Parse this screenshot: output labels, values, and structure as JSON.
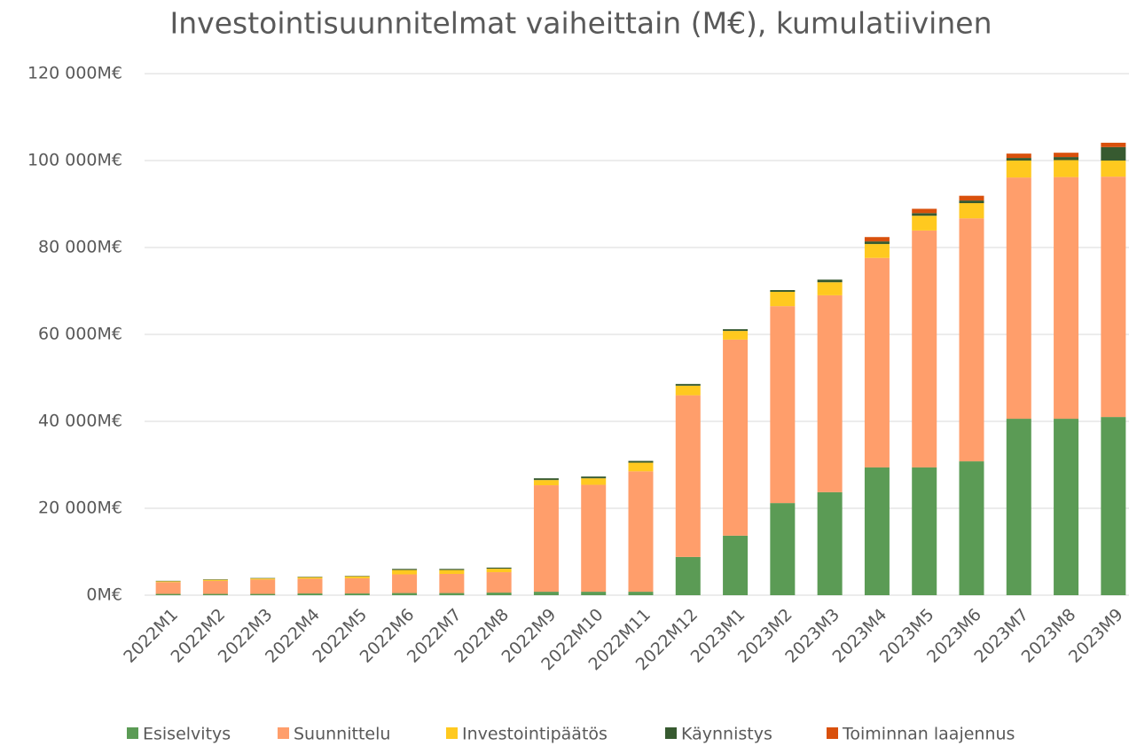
{
  "chart_data": {
    "type": "stacked_bar",
    "title": "Investointisuunnitelmat vaiheittain (M€), kumulatiivinen",
    "categories": [
      "2022M1",
      "2022M2",
      "2022M3",
      "2022M4",
      "2022M5",
      "2022M6",
      "2022M7",
      "2022M8",
      "2022M9",
      "2022M10",
      "2022M11",
      "2022M12",
      "2023M1",
      "2023M2",
      "2023M3",
      "2023M4",
      "2023M5",
      "2023M6",
      "2023M7",
      "2023M8",
      "2023M9"
    ],
    "series": [
      {
        "name": "Esiselvitys",
        "color": "#5b9b55",
        "values": [
          300,
          300,
          300,
          400,
          400,
          500,
          500,
          600,
          800,
          800,
          800,
          8800,
          13700,
          21200,
          23700,
          29400,
          29400,
          30800,
          40600,
          40600,
          41000
        ]
      },
      {
        "name": "Suunnittelu",
        "color": "#ff9e6b",
        "values": [
          2700,
          3000,
          3300,
          3400,
          3500,
          4300,
          4400,
          4700,
          24500,
          24600,
          27700,
          37200,
          45100,
          45300,
          45300,
          48200,
          54500,
          55900,
          55500,
          55600,
          55300
        ]
      },
      {
        "name": "Investointipäätös",
        "color": "#ffc91f",
        "values": [
          200,
          250,
          250,
          350,
          450,
          1000,
          900,
          800,
          1200,
          1500,
          2000,
          2200,
          2000,
          3300,
          3000,
          3200,
          3400,
          3500,
          3900,
          3900,
          3700
        ]
      },
      {
        "name": "Käynnistys",
        "color": "#375a30",
        "values": [
          100,
          100,
          100,
          100,
          100,
          250,
          250,
          250,
          400,
          400,
          400,
          400,
          400,
          400,
          600,
          600,
          600,
          600,
          600,
          700,
          3100
        ]
      },
      {
        "name": "Toiminnan laajennus",
        "color": "#d9500c",
        "values": [
          0,
          0,
          0,
          0,
          0,
          0,
          0,
          0,
          0,
          0,
          0,
          0,
          0,
          0,
          0,
          1000,
          1000,
          1100,
          1000,
          1000,
          1000
        ]
      }
    ],
    "ylim": [
      0,
      120000
    ],
    "yticks": [
      {
        "value": 0,
        "label": "0M€"
      },
      {
        "value": 20000,
        "label": "20 000M€"
      },
      {
        "value": 40000,
        "label": "40 000M€"
      },
      {
        "value": 60000,
        "label": "60 000M€"
      },
      {
        "value": 80000,
        "label": "80 000M€"
      },
      {
        "value": 100000,
        "label": "100 000M€"
      },
      {
        "value": 120000,
        "label": "120 000M€"
      }
    ],
    "grid": true,
    "legend": "bottom"
  }
}
